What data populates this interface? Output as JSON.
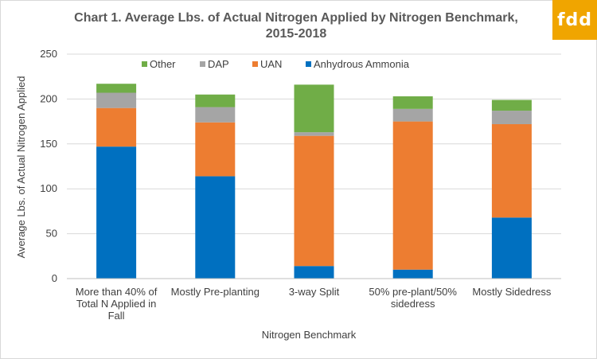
{
  "chart_data": {
    "type": "bar",
    "stacked": true,
    "title_lines": [
      "Chart 1. Average Lbs. of Actual Nitrogen Applied by Nitrogen Benchmark,",
      "2015-2018"
    ],
    "xlabel": "Nitrogen Benchmark",
    "ylabel": "Average Lbs. of Actual Nitrogen Applied",
    "ylim": [
      0,
      250
    ],
    "yticks": [
      0,
      50,
      100,
      150,
      200,
      250
    ],
    "grid": true,
    "legend_position": "top",
    "categories": [
      [
        "More than 40% of",
        "Total N Applied in",
        "Fall"
      ],
      [
        "Mostly Pre-planting"
      ],
      [
        "3-way Split"
      ],
      [
        "50% pre-plant/50%",
        "sidedress"
      ],
      [
        "Mostly Sidedress"
      ]
    ],
    "series": [
      {
        "name": "Anhydrous Ammonia",
        "color": "#0070c0",
        "values": [
          147,
          114,
          14,
          10,
          68
        ]
      },
      {
        "name": "UAN",
        "color": "#ed7d31",
        "values": [
          43,
          60,
          145,
          165,
          104
        ]
      },
      {
        "name": "DAP",
        "color": "#a5a5a5",
        "values": [
          17,
          17,
          4,
          14,
          15
        ]
      },
      {
        "name": "Other",
        "color": "#70ad47",
        "values": [
          10,
          14,
          53,
          14,
          12
        ]
      }
    ],
    "legend_order": [
      "Other",
      "DAP",
      "UAN",
      "Anhydrous Ammonia"
    ]
  },
  "logo": {
    "text": "fdd",
    "color": "#f0a500"
  }
}
